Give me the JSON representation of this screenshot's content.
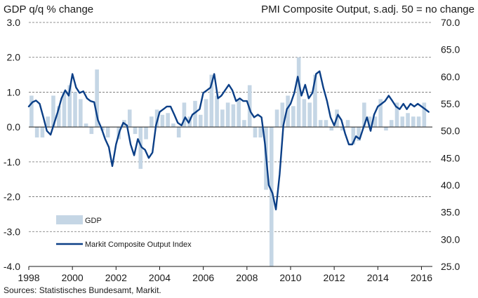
{
  "chart_data": {
    "type": "bar+line",
    "left_axis_title": "GDP q/q % change",
    "right_axis_title": "PMI Composite Output, s.adj. 50 = no change",
    "source": "Sources: Statistisches Bundesamt, Markit.",
    "x_ticks": [
      "1998",
      "2000",
      "2002",
      "2004",
      "2006",
      "2008",
      "2010",
      "2012",
      "2014",
      "2016"
    ],
    "left_ticks": [
      "3.0",
      "2.0",
      "1.0",
      "0.0",
      "-1.0",
      "-2.0",
      "-3.0",
      "-4.0"
    ],
    "right_ticks": [
      "70.0",
      "65.0",
      "60.0",
      "55.0",
      "50.0",
      "45.0",
      "40.0",
      "35.0",
      "30.0",
      "25.0"
    ],
    "ylim_left": [
      -4,
      3
    ],
    "ylim_right": [
      25,
      70
    ],
    "grid": "horizontal dashed",
    "legend_position": "lower-left",
    "colors": {
      "gdp_bars": "#c5d6e5",
      "pmi_line": "#0b3f87",
      "text": "#1a1a1a"
    },
    "series": [
      {
        "name": "GDP",
        "kind": "bar",
        "axis": "left",
        "x": [
          1998.0,
          1998.25,
          1998.5,
          1998.75,
          1999.0,
          1999.25,
          1999.5,
          1999.75,
          2000.0,
          2000.25,
          2000.5,
          2000.75,
          2001.0,
          2001.25,
          2001.5,
          2001.75,
          2002.0,
          2002.25,
          2002.5,
          2002.75,
          2003.0,
          2003.25,
          2003.5,
          2003.75,
          2004.0,
          2004.25,
          2004.5,
          2004.75,
          2005.0,
          2005.25,
          2005.5,
          2005.75,
          2006.0,
          2006.25,
          2006.5,
          2006.75,
          2007.0,
          2007.25,
          2007.5,
          2007.75,
          2008.0,
          2008.25,
          2008.5,
          2008.75,
          2009.0,
          2009.25,
          2009.5,
          2009.75,
          2010.0,
          2010.25,
          2010.5,
          2010.75,
          2011.0,
          2011.25,
          2011.5,
          2011.75,
          2012.0,
          2012.25,
          2012.5,
          2012.75,
          2013.0,
          2013.25,
          2013.5,
          2013.75,
          2014.0,
          2014.25,
          2014.5,
          2014.75,
          2015.0,
          2015.25,
          2015.5,
          2015.75,
          2016.0
        ],
        "values": [
          0.9,
          -0.3,
          -0.3,
          0.3,
          0.9,
          0.6,
          1.0,
          1.2,
          1.0,
          0.8,
          0.1,
          -0.2,
          1.65,
          -0.1,
          -0.3,
          0.0,
          -0.35,
          0.2,
          0.5,
          -0.2,
          -1.2,
          -0.35,
          0.3,
          0.5,
          0.35,
          0.4,
          0.1,
          -0.3,
          0.7,
          0.3,
          0.75,
          0.35,
          0.8,
          1.5,
          0.9,
          0.5,
          0.7,
          0.65,
          0.8,
          0.2,
          1.2,
          -0.3,
          -0.3,
          -1.8,
          -4.0,
          0.5,
          0.7,
          0.9,
          0.6,
          2.0,
          0.8,
          0.7,
          1.5,
          0.2,
          0.2,
          -0.1,
          0.5,
          -0.1,
          0.2,
          -0.5,
          -0.4,
          0.7,
          0.3,
          0.3,
          0.8,
          -0.1,
          0.2,
          0.7,
          0.3,
          0.4,
          0.3,
          0.3,
          0.7
        ]
      },
      {
        "name": "Markit Composite Output Index",
        "kind": "line",
        "axis": "right",
        "x": [
          1998.0,
          1998.17,
          1998.33,
          1998.5,
          1998.67,
          1998.83,
          1999.0,
          1999.17,
          1999.33,
          1999.5,
          1999.67,
          1999.83,
          2000.0,
          2000.17,
          2000.33,
          2000.5,
          2000.67,
          2000.83,
          2001.0,
          2001.17,
          2001.33,
          2001.5,
          2001.67,
          2001.83,
          2002.0,
          2002.17,
          2002.33,
          2002.5,
          2002.67,
          2002.83,
          2003.0,
          2003.17,
          2003.33,
          2003.5,
          2003.67,
          2003.83,
          2004.0,
          2004.17,
          2004.33,
          2004.5,
          2004.67,
          2004.83,
          2005.0,
          2005.17,
          2005.33,
          2005.5,
          2005.67,
          2005.83,
          2006.0,
          2006.17,
          2006.33,
          2006.5,
          2006.67,
          2006.83,
          2007.0,
          2007.17,
          2007.33,
          2007.5,
          2007.67,
          2007.83,
          2008.0,
          2008.17,
          2008.33,
          2008.5,
          2008.67,
          2008.83,
          2009.0,
          2009.17,
          2009.33,
          2009.5,
          2009.67,
          2009.83,
          2010.0,
          2010.17,
          2010.33,
          2010.5,
          2010.67,
          2010.83,
          2011.0,
          2011.17,
          2011.33,
          2011.5,
          2011.67,
          2011.83,
          2012.0,
          2012.17,
          2012.33,
          2012.5,
          2012.67,
          2012.83,
          2013.0,
          2013.17,
          2013.33,
          2013.5,
          2013.67,
          2013.83,
          2014.0,
          2014.17,
          2014.33,
          2014.5,
          2014.67,
          2014.83,
          2015.0,
          2015.17,
          2015.33,
          2015.5,
          2015.67,
          2015.83,
          2016.0,
          2016.17,
          2016.33
        ],
        "values": [
          54.5,
          55.3,
          55.6,
          55.0,
          52.5,
          50.0,
          49.3,
          51.5,
          53.5,
          56.0,
          57.5,
          56.5,
          60.5,
          58.0,
          57.0,
          57.3,
          56.0,
          55.5,
          55.3,
          52.0,
          50.5,
          48.5,
          47.0,
          43.5,
          47.5,
          50.0,
          51.5,
          51.0,
          47.5,
          45.5,
          48.5,
          47.0,
          46.5,
          45.0,
          46.0,
          51.0,
          53.5,
          54.0,
          54.5,
          54.5,
          53.0,
          51.5,
          51.0,
          52.5,
          51.5,
          53.0,
          53.5,
          54.0,
          57.0,
          57.5,
          58.0,
          60.5,
          56.0,
          56.5,
          57.5,
          58.5,
          57.5,
          55.5,
          56.0,
          55.5,
          55.5,
          53.5,
          52.5,
          53.0,
          52.5,
          47.5,
          40.0,
          38.5,
          35.5,
          42.0,
          51.0,
          54.0,
          55.0,
          57.0,
          60.0,
          56.5,
          58.5,
          56.0,
          57.0,
          60.5,
          61.0,
          58.0,
          55.5,
          52.5,
          51.0,
          53.0,
          52.0,
          49.5,
          47.5,
          47.5,
          49.0,
          48.5,
          50.5,
          52.5,
          50.0,
          53.0,
          54.5,
          55.0,
          55.5,
          56.5,
          55.5,
          54.5,
          54.0,
          55.0,
          54.0,
          55.0,
          54.5,
          55.0,
          54.5,
          54.0,
          53.5
        ]
      }
    ]
  }
}
